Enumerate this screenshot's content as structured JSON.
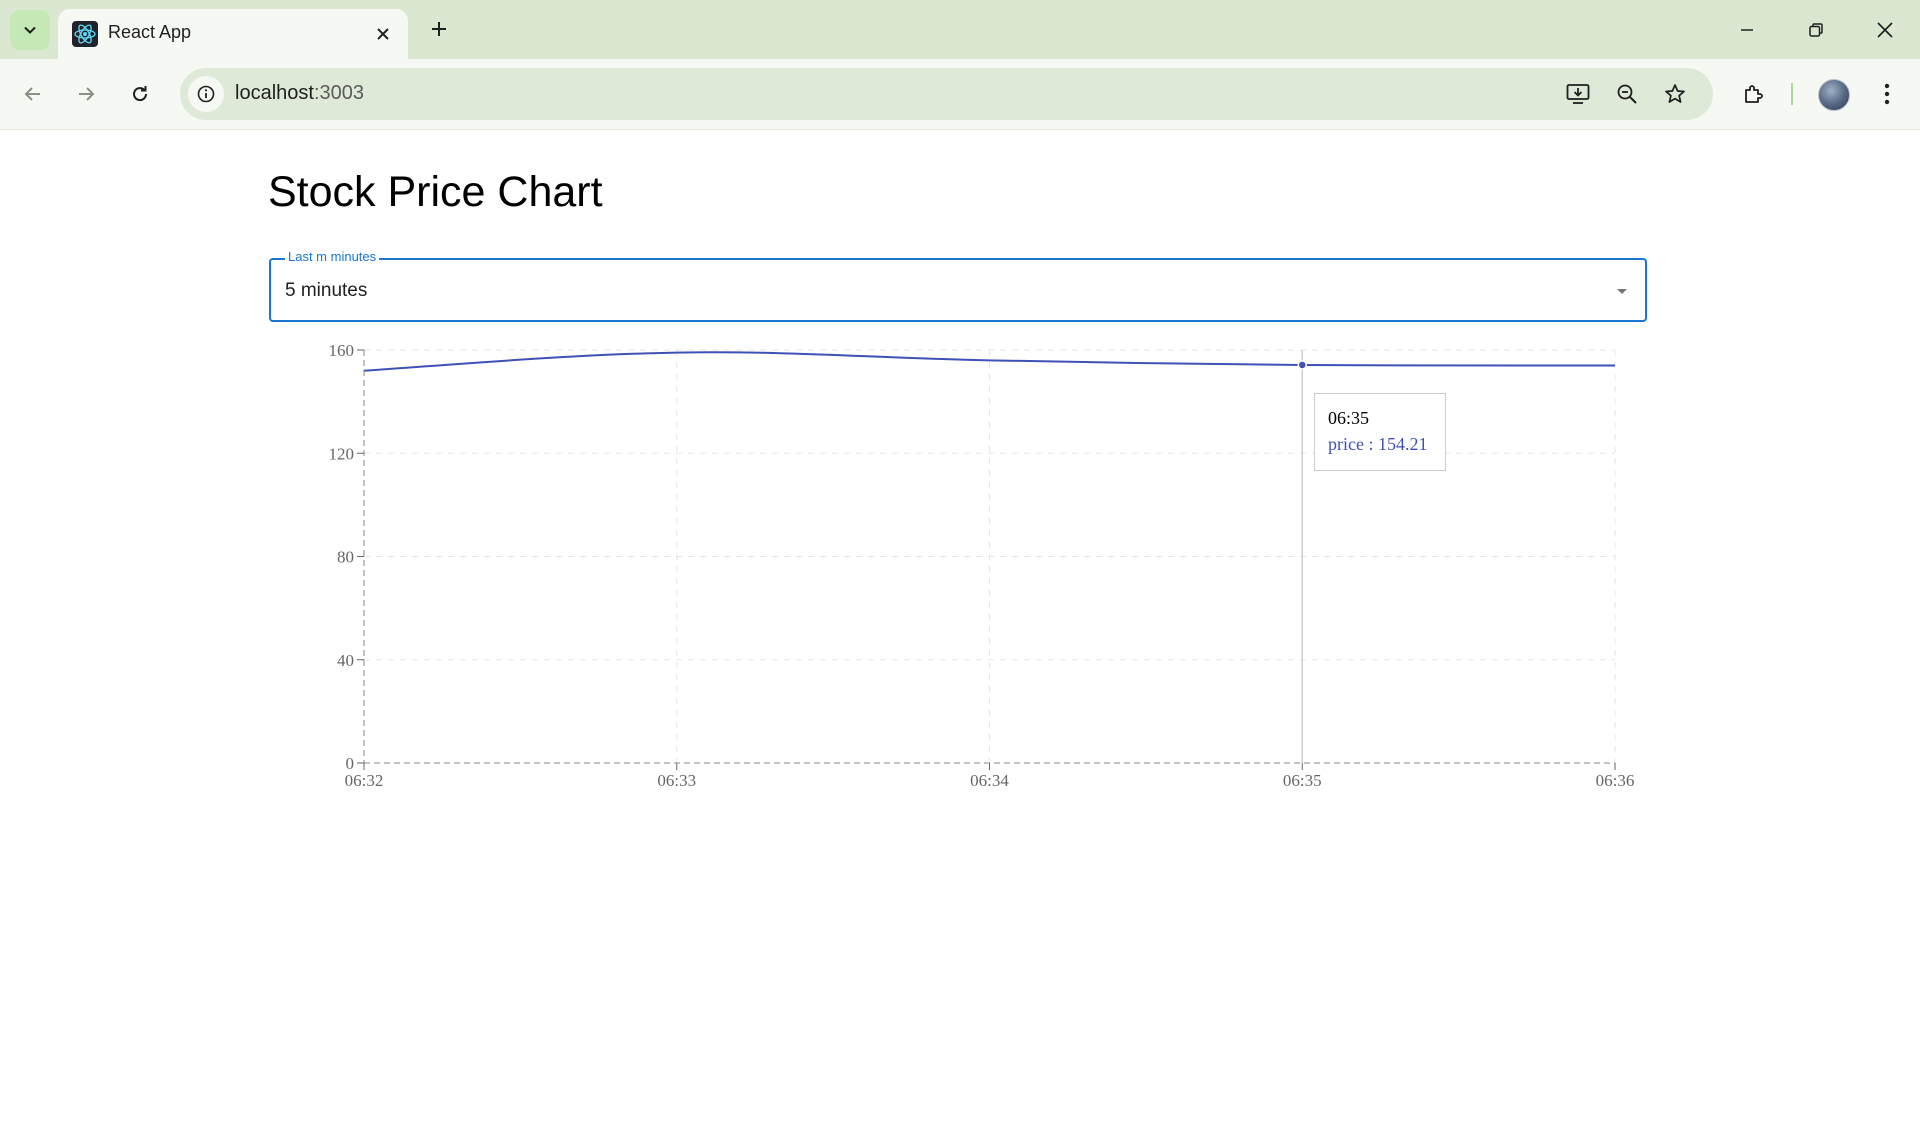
{
  "browser": {
    "tab_title": "React App",
    "url_host": "localhost",
    "url_port": ":3003"
  },
  "page": {
    "title": "Stock Price Chart",
    "select": {
      "label": "Last m minutes",
      "value": "5 minutes"
    }
  },
  "colors": {
    "line": "#3f51b5",
    "accent": "#1976d2"
  },
  "chart_data": {
    "type": "line",
    "x": [
      "06:32",
      "06:33",
      "06:34",
      "06:35",
      "06:36"
    ],
    "series": [
      {
        "name": "price",
        "values": [
          152,
          159,
          156,
          154.21,
          154
        ]
      }
    ],
    "ylim": [
      0,
      160
    ],
    "yticks": [
      0,
      40,
      80,
      120,
      160
    ],
    "grid": true,
    "curve": "monotone",
    "tooltip": {
      "label": "06:35",
      "item": "price : 154.21",
      "active_index": 3
    }
  }
}
